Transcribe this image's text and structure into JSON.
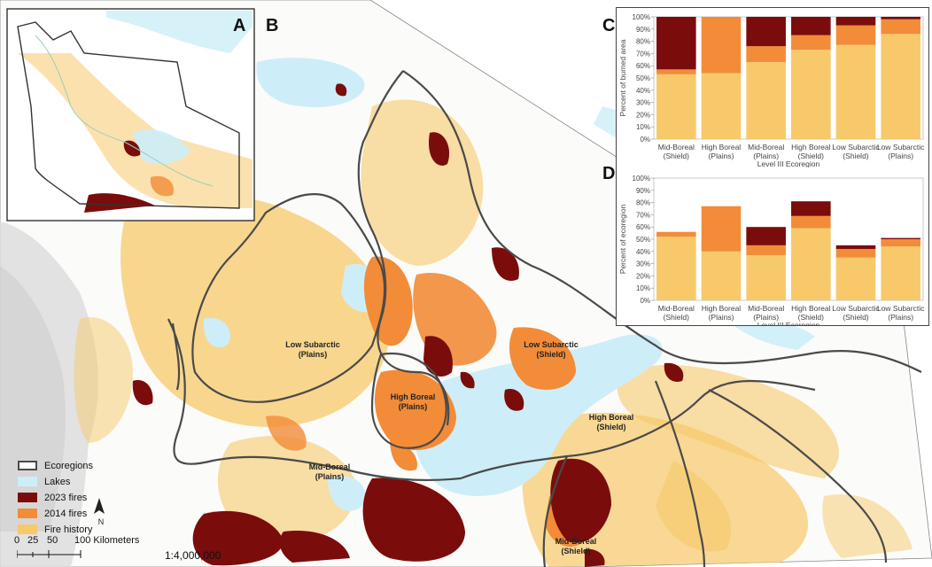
{
  "panels": {
    "a": "A",
    "b": "B",
    "c": "C",
    "d": "D"
  },
  "map_labels": {
    "low_subarctic_plains": [
      "Low Subarctic",
      "(Plains)"
    ],
    "low_subarctic_shield": [
      "Low Subarctic",
      "(Shield)"
    ],
    "high_boreal_plains": [
      "High Boreal",
      "(Plains)"
    ],
    "high_boreal_shield": [
      "High Boreal",
      "(Shield)"
    ],
    "mid_boreal_plains": [
      "Mid-Boreal",
      "(Plains)"
    ],
    "mid_boreal_shield": [
      "Mid-Boreal",
      "(Shield)"
    ]
  },
  "legend": {
    "items": [
      {
        "label": "Ecoregions",
        "type": "outline",
        "color": "#4a4a4a"
      },
      {
        "label": "Lakes",
        "type": "fill",
        "color": "#cdeef8"
      },
      {
        "label": "2023 fires",
        "type": "fill",
        "color": "#7b0c0c"
      },
      {
        "label": "2014 fires",
        "type": "fill",
        "color": "#f28c38"
      },
      {
        "label": "Fire history",
        "type": "fill",
        "color": "#f7c96a"
      }
    ]
  },
  "north_arrow": "N",
  "scale_bar": {
    "ticks": [
      "0",
      "25",
      "50",
      "100 Kilometers"
    ]
  },
  "scale_ratio": "1:4,000,000",
  "colors": {
    "fire2023": "#7b0c0c",
    "fire2014": "#f28c38",
    "history": "#f7c96a",
    "lake": "#cdeef8",
    "boundary": "#4a4a4a",
    "relief": "#dcdcdc"
  },
  "chart_data": [
    {
      "type": "bar",
      "stacked": true,
      "panel": "C",
      "categories": [
        [
          "Mid-Boreal",
          "(Shield)"
        ],
        [
          "High Boreal",
          "(Plains)"
        ],
        [
          "Mid-Boreal",
          "(Plains)"
        ],
        [
          "High Boreal",
          "(Shield)"
        ],
        [
          "Low Subarctic",
          "(Shield)"
        ],
        [
          "Low Subarctic",
          "(Plains)"
        ]
      ],
      "series": [
        {
          "color": "#f7c96a",
          "values": [
            53,
            54,
            63,
            73,
            77,
            86
          ]
        },
        {
          "color": "#f28c38",
          "values": [
            4,
            46,
            13,
            12,
            16,
            12
          ]
        },
        {
          "color": "#7b0c0c",
          "values": [
            43,
            0,
            24,
            15,
            7,
            2
          ]
        }
      ],
      "ylabel": "Percent of burned area",
      "xlabel": "Level III Ecoregion",
      "yticks": [
        "0%",
        "10%",
        "20%",
        "30%",
        "40%",
        "50%",
        "60%",
        "70%",
        "80%",
        "90%",
        "100%"
      ],
      "ylim": [
        0,
        100
      ]
    },
    {
      "type": "bar",
      "stacked": true,
      "panel": "D",
      "categories": [
        [
          "Mid-Boreal",
          "(Shield)"
        ],
        [
          "High Boreal",
          "(Plains)"
        ],
        [
          "Mid-Boreal",
          "(Plains)"
        ],
        [
          "High Boreal",
          "(Shield)"
        ],
        [
          "Low Subarctic",
          "(Shield)"
        ],
        [
          "Low Subarctic",
          "(Plains)"
        ]
      ],
      "series": [
        {
          "color": "#f7c96a",
          "values": [
            52,
            40,
            37,
            59,
            35,
            44
          ]
        },
        {
          "color": "#f28c38",
          "values": [
            4,
            37,
            8,
            10,
            7,
            6
          ]
        },
        {
          "color": "#7b0c0c",
          "values": [
            0,
            0,
            15,
            12,
            3,
            1
          ]
        }
      ],
      "ylabel": "Percent of ecoregion",
      "xlabel": "Level III Ecoregion",
      "yticks": [
        "0%",
        "10%",
        "20%",
        "30%",
        "40%",
        "50%",
        "60%",
        "70%",
        "80%",
        "90%",
        "100%"
      ],
      "ylim": [
        0,
        100
      ]
    }
  ]
}
